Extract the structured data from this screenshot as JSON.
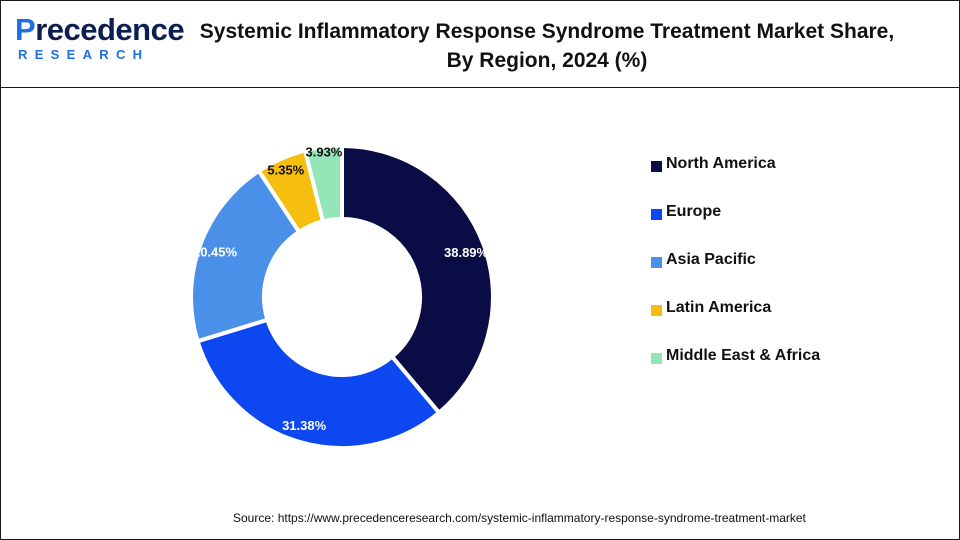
{
  "logo": {
    "main_text": "Precedence",
    "sub_text": "RESEARCH"
  },
  "title": "Systemic Inflammatory Response Syndrome Treatment Market Share, By Region, 2024 (%)",
  "source": "Source: https://www.precedenceresearch.com/systemic-inflammatory-response-syndrome-treatment-market",
  "colors": {
    "border": "#1a1a1a",
    "label_dark": "#111111",
    "label_light": "#ffffff"
  },
  "chart_data": {
    "type": "pie",
    "style": "donut",
    "title": "Systemic Inflammatory Response Syndrome Treatment Market Share, By Region, 2024 (%)",
    "unit": "%",
    "legend_position": "right",
    "categories": [
      "North America",
      "Europe",
      "Asia Pacific",
      "Latin America",
      "Middle East & Africa"
    ],
    "values": [
      38.89,
      31.38,
      20.45,
      5.35,
      3.93
    ],
    "labels": [
      "38.89%",
      "31.38%",
      "20.45%",
      "5.35%",
      "3.93%"
    ],
    "colors": [
      "#0a0d45",
      "#0d47f0",
      "#4a90e8",
      "#f6be0f",
      "#94e6b8"
    ]
  }
}
